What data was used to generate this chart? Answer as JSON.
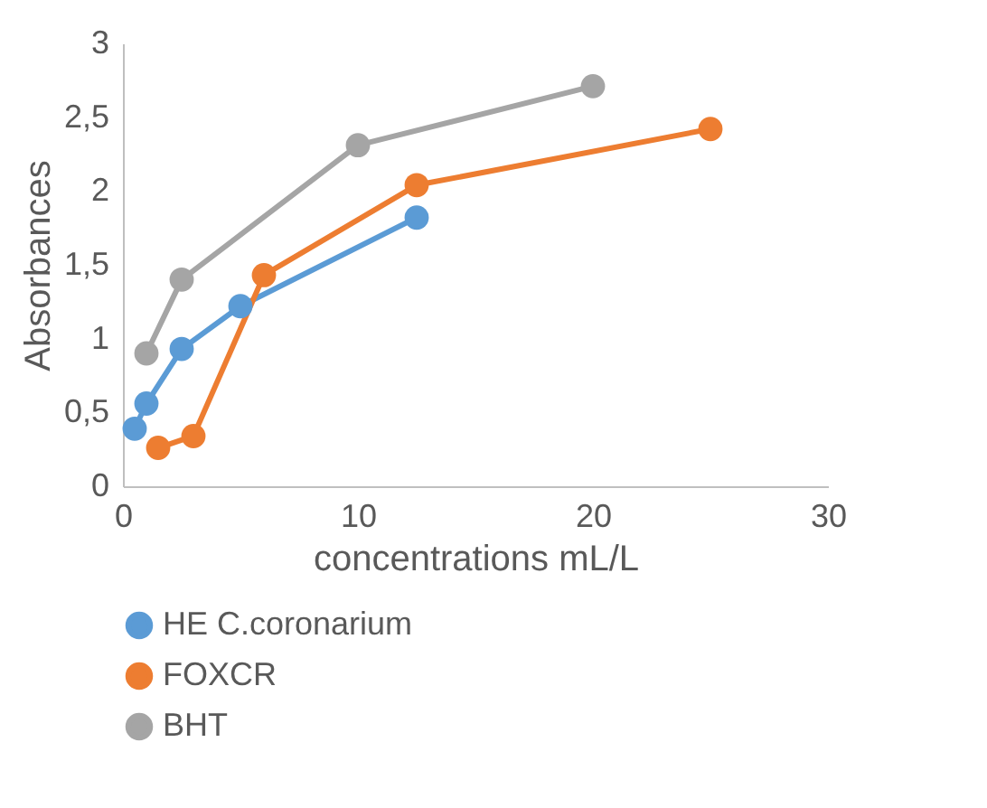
{
  "chart_data": {
    "type": "line",
    "xlabel": "concentrations mL/L",
    "ylabel": "Absorbances",
    "xlim": [
      0,
      30
    ],
    "xticks": [
      0,
      10,
      20,
      30
    ],
    "ylim": [
      0,
      3
    ],
    "yticks": [
      0,
      {
        "value": 0.5,
        "label": "0,5"
      },
      1,
      {
        "value": 1.5,
        "label": "1,5"
      },
      2,
      {
        "value": 2.5,
        "label": "2,5"
      },
      3
    ],
    "grid": false,
    "legend": "bottom",
    "marker": "circle",
    "line_style": "solid",
    "series": [
      {
        "name": "HE C.coronarium",
        "color": "#5b9bd5",
        "x": [
          0.5,
          1,
          2.5,
          5,
          12.5
        ],
        "values": [
          0.39,
          0.56,
          0.93,
          1.22,
          1.82
        ]
      },
      {
        "name": "FOXCR",
        "color": "#ed7d31",
        "x": [
          1.5,
          3,
          6,
          12.5,
          25
        ],
        "values": [
          0.26,
          0.34,
          1.43,
          2.04,
          2.42
        ]
      },
      {
        "name": "BHT",
        "color": "#a5a5a5",
        "x": [
          1,
          2.5,
          10,
          20
        ],
        "values": [
          0.9,
          1.4,
          2.31,
          2.71
        ]
      }
    ]
  }
}
